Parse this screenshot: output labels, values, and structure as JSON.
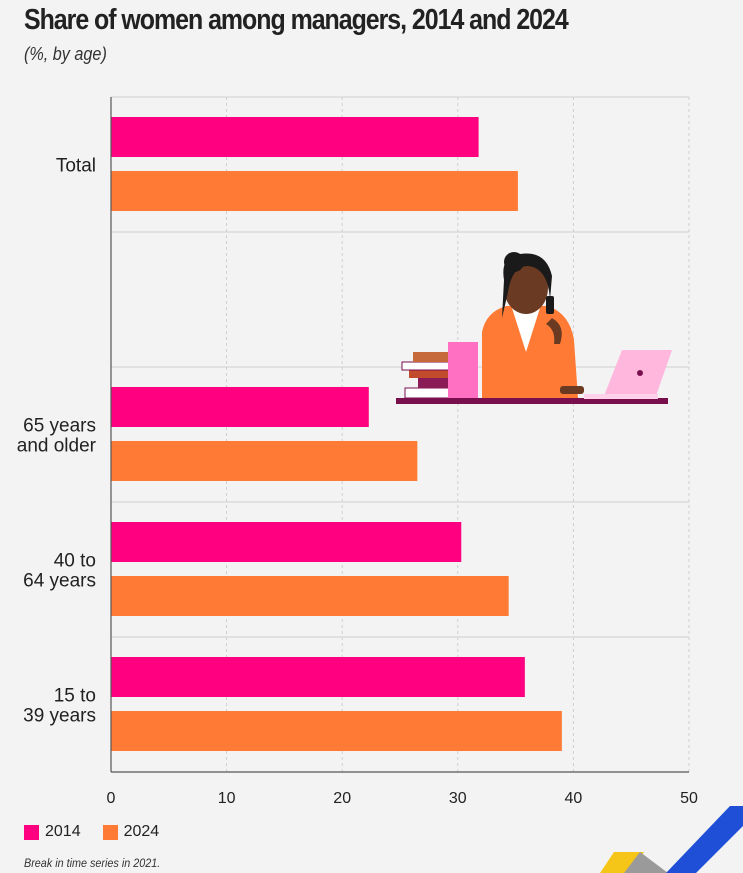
{
  "colors": {
    "series_2014": "#ff0080",
    "series_2024": "#ff7b35",
    "background": "#f3f3f3",
    "grid": "#cfcfcf"
  },
  "chart_data": {
    "type": "bar",
    "orientation": "horizontal",
    "title": "Share of women among managers, 2014 and 2024",
    "subtitle": "(%, by age)",
    "categories": [
      "Total",
      "",
      "65 years and older",
      "40 to 64 years",
      "15 to 39 years"
    ],
    "category_lines": [
      [
        "Total"
      ],
      [],
      [
        "65 years",
        "and older"
      ],
      [
        "40 to",
        "64 years"
      ],
      [
        "15 to",
        "39 years"
      ]
    ],
    "series": [
      {
        "name": "2014",
        "color": "#ff0080",
        "values": [
          31.8,
          null,
          22.3,
          30.3,
          35.8
        ]
      },
      {
        "name": "2024",
        "color": "#ff7b35",
        "values": [
          35.2,
          null,
          26.5,
          34.4,
          39.0
        ]
      }
    ],
    "xlim": [
      0,
      50
    ],
    "xticks": [
      "0",
      "10",
      "20",
      "30",
      "40",
      "50"
    ],
    "grid": true,
    "legend_position": "bottom-left",
    "footnote": "Break in time series in 2021."
  },
  "illustration": {
    "subject": "woman-manager-at-desk-illustration",
    "elements": [
      "woman-on-phone",
      "laptop",
      "book-stack",
      "desk"
    ]
  },
  "logo": {
    "name": "corner-logo",
    "colors": [
      "#f5c518",
      "#9a9a9a",
      "#1f4fd6"
    ]
  }
}
